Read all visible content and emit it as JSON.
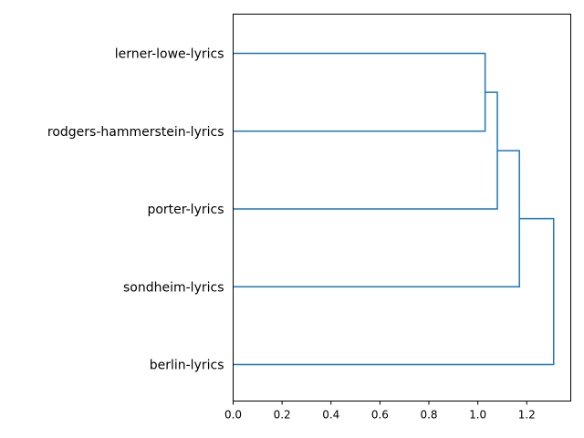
{
  "chart_data": {
    "type": "dendrogram",
    "orientation": "horizontal",
    "title": "",
    "xlabel": "",
    "ylabel": "",
    "xlim": [
      0,
      1.38
    ],
    "xticks": [
      0.0,
      0.2,
      0.4,
      0.6,
      0.8,
      1.0,
      1.2
    ],
    "xtick_labels": [
      "0.0",
      "0.2",
      "0.4",
      "0.6",
      "0.8",
      "1.0",
      "1.2"
    ],
    "grid": false,
    "line_color": "#1f77b4",
    "leaves": [
      "lerner-lowe-lyrics",
      "rodgers-hammerstein-lyrics",
      "porter-lyrics",
      "sondheim-lyrics",
      "berlin-lyrics"
    ],
    "merges": [
      {
        "members": [
          "lerner-lowe-lyrics",
          "rodgers-hammerstein-lyrics"
        ],
        "distance": 1.03
      },
      {
        "members": [
          "lerner-lowe-lyrics + rodgers-hammerstein-lyrics",
          "porter-lyrics"
        ],
        "distance": 1.08
      },
      {
        "members": [
          "lerner-lowe-lyrics + rodgers-hammerstein-lyrics + porter-lyrics",
          "sondheim-lyrics"
        ],
        "distance": 1.17
      },
      {
        "members": [
          "lerner-lowe-lyrics + rodgers-hammerstein-lyrics + porter-lyrics + sondheim-lyrics",
          "berlin-lyrics"
        ],
        "distance": 1.31
      }
    ]
  }
}
